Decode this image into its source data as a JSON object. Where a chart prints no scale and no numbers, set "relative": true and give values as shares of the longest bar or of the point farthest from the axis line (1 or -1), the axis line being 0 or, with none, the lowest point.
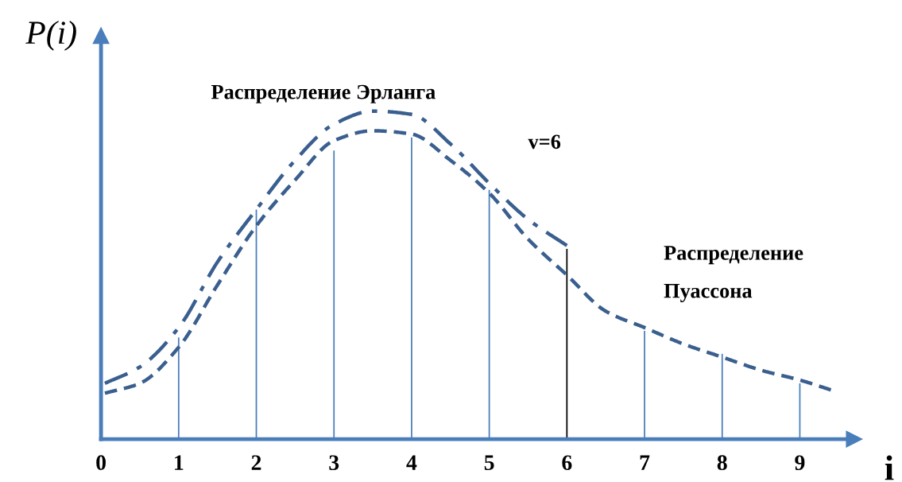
{
  "chart_data": {
    "type": "line",
    "relative": true,
    "xlabel": "i",
    "ylabel": "P(i)",
    "xlim": [
      0,
      9.7
    ],
    "xticks": [
      0,
      1,
      2,
      3,
      4,
      5,
      6,
      7,
      8,
      9
    ],
    "grid": false,
    "legend": false,
    "marker": "none",
    "series": [
      {
        "name": "Распределение Эрланга",
        "line_style": "dashdot",
        "color": "#3a5f8f",
        "x": [
          0.05,
          0.5,
          1,
          1.5,
          2,
          2.5,
          3,
          3.5,
          4,
          4.5,
          5,
          5.5,
          6
        ],
        "values": [
          0.17,
          0.22,
          0.34,
          0.54,
          0.7,
          0.85,
          0.96,
          1.0,
          0.99,
          0.9,
          0.78,
          0.67,
          0.59
        ]
      },
      {
        "name": "Распределение\nПуассона",
        "line_style": "dashed",
        "color": "#3a5f8f",
        "x": [
          0.05,
          0.5,
          1,
          1.5,
          2,
          2.5,
          3,
          3.5,
          4,
          4.5,
          5,
          5.5,
          6,
          6.5,
          7,
          7.5,
          8,
          8.5,
          9,
          9.4
        ],
        "values": [
          0.14,
          0.17,
          0.28,
          0.47,
          0.65,
          0.79,
          0.91,
          0.94,
          0.93,
          0.85,
          0.75,
          0.61,
          0.5,
          0.39,
          0.34,
          0.29,
          0.25,
          0.21,
          0.18,
          0.15
        ]
      },
      {
        "type": "bar",
        "x": [
          1,
          2,
          3,
          4,
          5,
          6,
          7,
          8,
          9
        ],
        "colors": [
          "#4a7ebb",
          "#4a7ebb",
          "#4a7ebb",
          "#4a7ebb",
          "#4a7ebb",
          "#000000",
          "#4a7ebb",
          "#4a7ebb",
          "#4a7ebb"
        ],
        "values": [
          0.31,
          0.7,
          0.88,
          0.92,
          0.76,
          0.58,
          0.33,
          0.26,
          0.17
        ]
      }
    ],
    "annotations": [
      "v=6"
    ]
  }
}
